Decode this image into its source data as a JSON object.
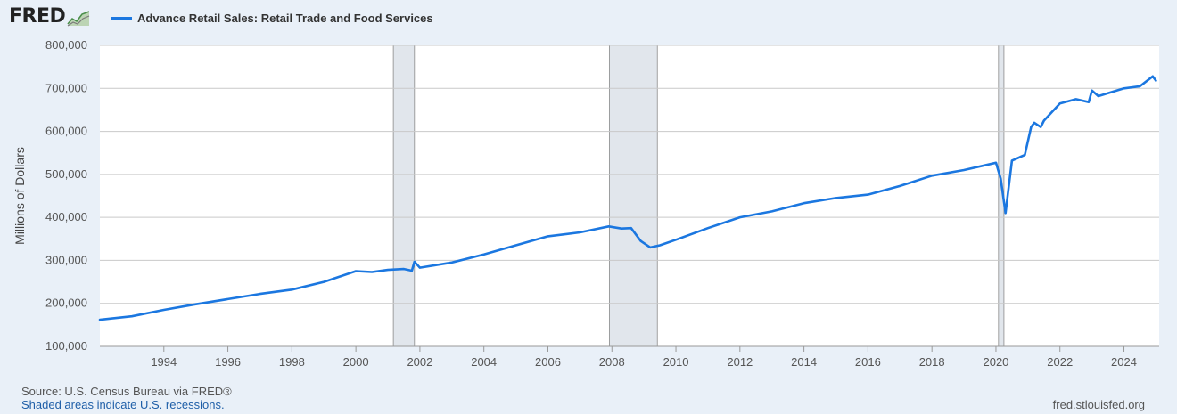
{
  "header": {
    "logo_text": "FRED",
    "legend_label": "Advance Retail Sales: Retail Trade and Food Services"
  },
  "colors": {
    "series": "#1b77e0",
    "recession_fill": "#e1e6ec",
    "grid": "#c9c9c9",
    "background": "#e9f0f8"
  },
  "footer": {
    "source": "Source: U.S. Census Bureau via FRED®",
    "recession_note": "Shaded areas indicate U.S. recessions.",
    "site": "fred.stlouisfed.org"
  },
  "chart_data": {
    "type": "line",
    "ylabel": "Millions of Dollars",
    "xlabel": "",
    "ylim": [
      100000,
      800000
    ],
    "xlim": [
      1992.0,
      2025.1
    ],
    "grid": true,
    "legend_position": "top-left",
    "y_ticks": [
      "100,000",
      "200,000",
      "300,000",
      "400,000",
      "500,000",
      "600,000",
      "700,000",
      "800,000"
    ],
    "x_ticks": [
      "1994",
      "1996",
      "1998",
      "2000",
      "2002",
      "2004",
      "2006",
      "2008",
      "2010",
      "2012",
      "2014",
      "2016",
      "2018",
      "2020",
      "2022",
      "2024"
    ],
    "recessions": [
      {
        "start": 2001.17,
        "end": 2001.83
      },
      {
        "start": 2007.92,
        "end": 2009.42
      },
      {
        "start": 2020.08,
        "end": 2020.25
      }
    ],
    "series": [
      {
        "name": "Advance Retail Sales: Retail Trade and Food Services",
        "x": [
          1992.0,
          1993.0,
          1994.0,
          1995.0,
          1996.0,
          1997.0,
          1998.0,
          1999.0,
          2000.0,
          2000.5,
          2001.0,
          2001.5,
          2001.75,
          2001.83,
          2002.0,
          2003.0,
          2004.0,
          2005.0,
          2006.0,
          2007.0,
          2007.9,
          2008.3,
          2008.6,
          2008.9,
          2009.2,
          2009.5,
          2010.0,
          2011.0,
          2012.0,
          2013.0,
          2014.0,
          2015.0,
          2016.0,
          2017.0,
          2018.0,
          2019.0,
          2020.0,
          2020.15,
          2020.3,
          2020.5,
          2020.9,
          2021.1,
          2021.2,
          2021.4,
          2021.5,
          2022.0,
          2022.5,
          2022.9,
          2023.0,
          2023.2,
          2024.0,
          2024.5,
          2024.9,
          2025.0
        ],
        "y": [
          162000,
          170000,
          185000,
          198000,
          210000,
          222000,
          232000,
          250000,
          275000,
          273000,
          278000,
          280000,
          276000,
          297000,
          283000,
          295000,
          314000,
          335000,
          356000,
          365000,
          379000,
          374000,
          375000,
          345000,
          330000,
          335000,
          348000,
          375000,
          400000,
          414000,
          433000,
          445000,
          453000,
          473000,
          497000,
          510000,
          527000,
          490000,
          410000,
          532000,
          545000,
          610000,
          620000,
          610000,
          625000,
          665000,
          675000,
          668000,
          695000,
          682000,
          700000,
          705000,
          728000,
          718000
        ]
      }
    ]
  }
}
